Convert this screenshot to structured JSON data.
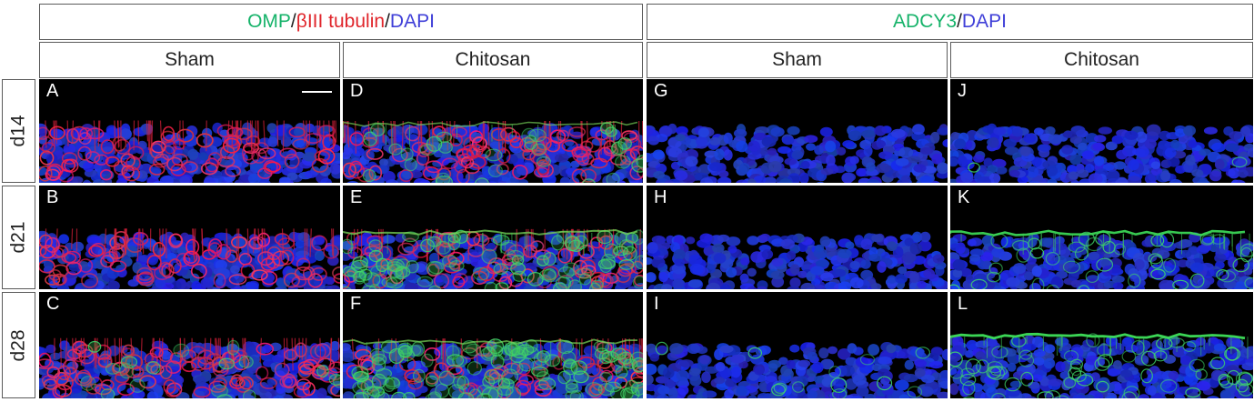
{
  "group_headers": [
    {
      "segments": [
        {
          "text": "OMP",
          "color": "#16b36a"
        },
        {
          "text": "/",
          "color": "#222222"
        },
        {
          "text": "βIII tubulin",
          "color": "#e0252b"
        },
        {
          "text": "/",
          "color": "#222222"
        },
        {
          "text": "DAPI",
          "color": "#3f3fd8"
        }
      ]
    },
    {
      "segments": [
        {
          "text": "ADCY3",
          "color": "#16b36a"
        },
        {
          "text": "/",
          "color": "#222222"
        },
        {
          "text": "DAPI",
          "color": "#3f3fd8"
        }
      ]
    }
  ],
  "column_headers": [
    "Sham",
    "Chitosan",
    "Sham",
    "Chitosan"
  ],
  "row_labels": [
    "d14",
    "d21",
    "d28"
  ],
  "panels": [
    {
      "label": "A",
      "stain": "omp",
      "green": 0.0,
      "red": 0.75,
      "line": 0,
      "scalebar": true
    },
    {
      "label": "D",
      "stain": "omp",
      "green": 0.25,
      "red": 0.8,
      "line": 0.3
    },
    {
      "label": "G",
      "stain": "adcy3",
      "green": 0.0,
      "red": 0,
      "line": 0
    },
    {
      "label": "J",
      "stain": "adcy3",
      "green": 0.02,
      "red": 0,
      "line": 0
    },
    {
      "label": "B",
      "stain": "omp",
      "green": 0.0,
      "red": 0.75,
      "line": 0
    },
    {
      "label": "E",
      "stain": "omp",
      "green": 0.7,
      "red": 0.7,
      "line": 0.5
    },
    {
      "label": "H",
      "stain": "adcy3",
      "green": 0.0,
      "red": 0,
      "line": 0
    },
    {
      "label": "K",
      "stain": "adcy3",
      "green": 0.35,
      "red": 0,
      "line": 0.8
    },
    {
      "label": "C",
      "stain": "omp",
      "green": 0.15,
      "red": 0.9,
      "line": 0
    },
    {
      "label": "F",
      "stain": "omp",
      "green": 0.95,
      "red": 0.55,
      "line": 0.4
    },
    {
      "label": "I",
      "stain": "adcy3",
      "green": 0.1,
      "red": 0,
      "line": 0
    },
    {
      "label": "L",
      "stain": "adcy3",
      "green": 0.45,
      "red": 0,
      "line": 0.9
    }
  ]
}
